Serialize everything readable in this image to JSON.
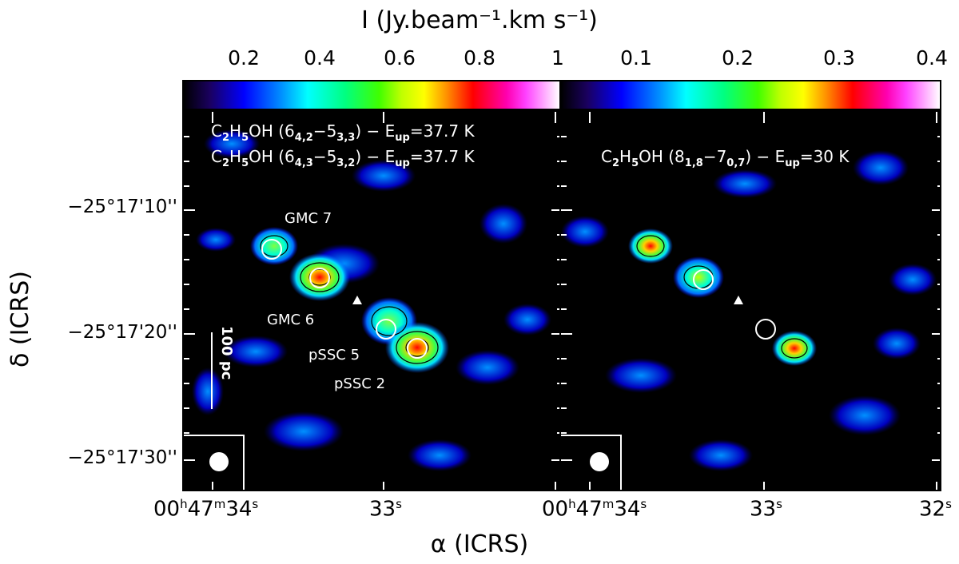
{
  "colorbar_title": "I (Jy.beam⁻¹.km s⁻¹)",
  "left_colorbar": {
    "ticks": [
      "0.2",
      "0.4",
      "0.6",
      "0.8",
      "1"
    ],
    "range": [
      0.05,
      1.0
    ]
  },
  "right_colorbar": {
    "ticks": [
      "0.1",
      "0.2",
      "0.3",
      "0.4"
    ],
    "range": [
      0.025,
      0.4
    ]
  },
  "left_panel": {
    "line1": {
      "species": "C",
      "s1": "2",
      "m": "H",
      "s2": "5",
      "rest": "OH (6",
      "q1": "4,2",
      "dash": "−5",
      "q2": "3,3",
      "end": ") − E",
      "up": "up",
      "energy": "=37.7 K"
    },
    "line2": {
      "species": "C",
      "s1": "2",
      "m": "H",
      "s2": "5",
      "rest": "OH (6",
      "q1": "4,3",
      "dash": "−5",
      "q2": "3,2",
      "end": ") − E",
      "up": "up",
      "energy": "=37.7 K"
    },
    "labels": {
      "gmc7": "GMC 7",
      "gmc6": "GMC 6",
      "pssc5": "pSSC 5",
      "pssc2": "pSSC 2"
    },
    "scale_bar": "100 pc"
  },
  "right_panel": {
    "line1": {
      "species": "C",
      "s1": "2",
      "m": "H",
      "s2": "5",
      "rest": "OH (8",
      "q1": "1,8",
      "dash": "−7",
      "q2": "0,7",
      "end": ") − E",
      "up": "up",
      "energy": "=30 K"
    }
  },
  "y_axis": {
    "label": "δ (ICRS)",
    "ticks": [
      "−25°17'10''",
      "−25°17'20''",
      "−25°17'30''"
    ]
  },
  "x_axis": {
    "label": "α (ICRS)",
    "left_ticks": [
      {
        "a": "00",
        "ha": "h",
        "b": "47",
        "hb": "m",
        "c": "34",
        "hc": "s"
      },
      {
        "c": "33",
        "hc": "s"
      }
    ],
    "right_ticks": [
      {
        "a": "00",
        "ha": "h",
        "b": "47",
        "hb": "m",
        "c": "34",
        "hc": "s"
      },
      {
        "c": "33",
        "hc": "s"
      },
      {
        "c": "32",
        "hc": "s"
      }
    ]
  },
  "colors": {
    "background": "#000000",
    "annotation": "#ffffff",
    "contour": "#000000"
  }
}
